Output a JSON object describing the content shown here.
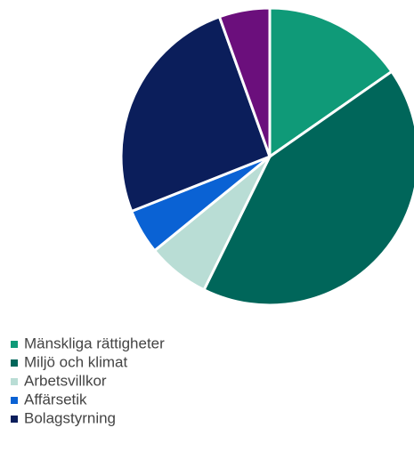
{
  "chart_data": {
    "type": "pie",
    "categories": [
      "Mänskliga rättigheter",
      "Miljö och klimat",
      "Arbetsvillkor",
      "Affärsetik",
      "Bolagstyrning",
      null
    ],
    "values": [
      15.3,
      42,
      6.8,
      4.9,
      25.5,
      5.5
    ],
    "colors": [
      "#0f9a78",
      "#00665a",
      "#b9ddd5",
      "#0a62d4",
      "#0b1e5b",
      "#6b0f7c"
    ],
    "legend": "bottom-left"
  }
}
